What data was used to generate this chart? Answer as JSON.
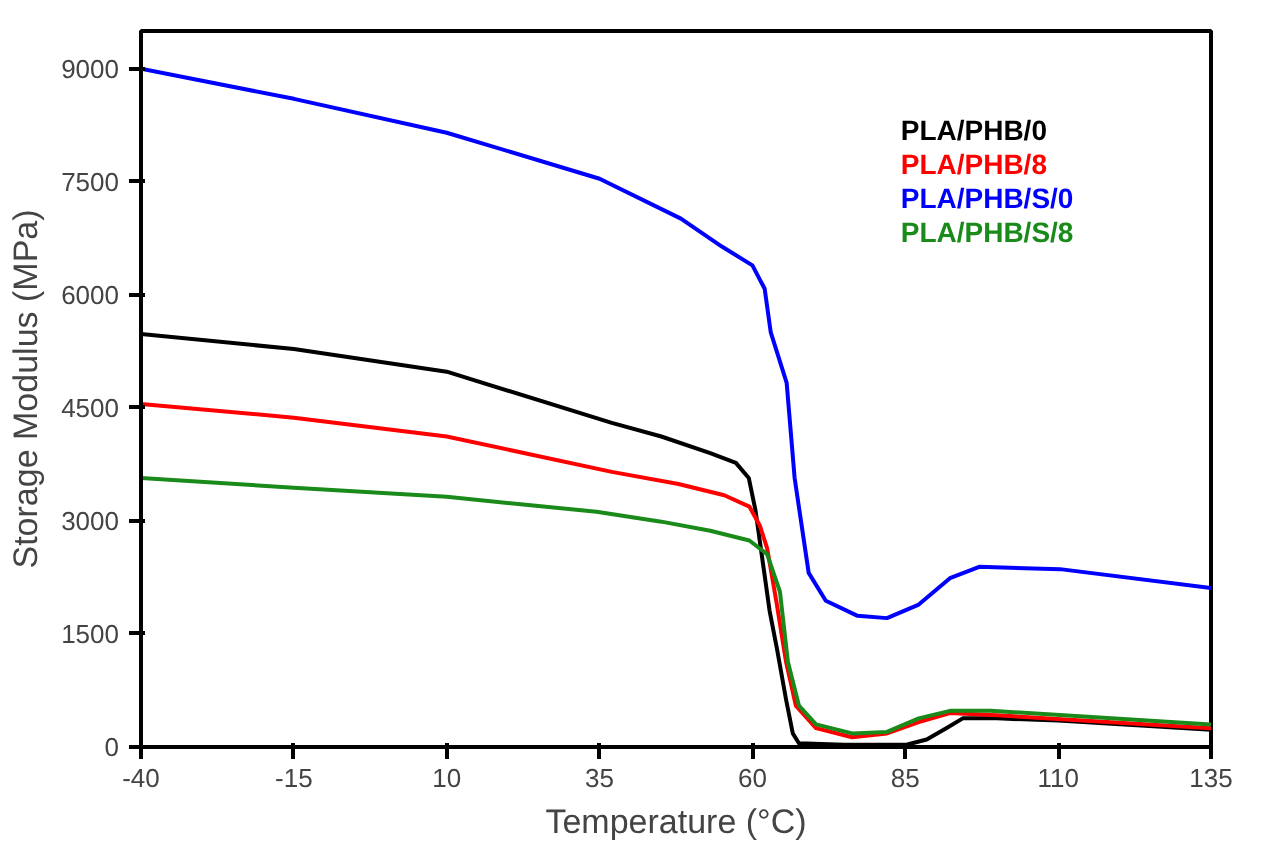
{
  "chart_data": {
    "type": "line",
    "xlabel": "Temperature (°C)",
    "ylabel": "Storage Modulus (MPa)",
    "xlim": [
      -40,
      135
    ],
    "xticks": [
      -40,
      -15,
      10,
      35,
      60,
      85,
      110,
      135
    ],
    "ylim": [
      0,
      9500
    ],
    "yticks": [
      0,
      1500,
      3000,
      4500,
      6000,
      7500,
      9000
    ],
    "grid": false,
    "legend": "top right",
    "line_style": "solid",
    "marker": "none",
    "series": [
      {
        "name": "PLA/PHB/0",
        "color": "#000000",
        "x": [
          -40,
          -15,
          10,
          37,
          45.1,
          53.1,
          57.3,
          59.4,
          60.5,
          61.8,
          62.8,
          64,
          65.5,
          66.6,
          67.6,
          75,
          85.2,
          88.5,
          91.7,
          94.4,
          100,
          110,
          135
        ],
        "values": [
          5480,
          5280,
          4980,
          4300,
          4120,
          3900,
          3770,
          3570,
          3140,
          2390,
          1810,
          1310,
          630,
          180,
          50,
          30,
          30,
          100,
          250,
          380,
          380,
          350,
          230
        ]
      },
      {
        "name": "PLA/PHB/8",
        "color": "#ff0000",
        "x": [
          -40,
          -15,
          10,
          37,
          47.9,
          55.4,
          59.5,
          61.2,
          62.4,
          64,
          65.5,
          67.1,
          70.4,
          76.3,
          82,
          87.2,
          92.3,
          100,
          135
        ],
        "values": [
          4550,
          4370,
          4120,
          3650,
          3490,
          3340,
          3190,
          2940,
          2640,
          1890,
          1130,
          550,
          250,
          130,
          180,
          330,
          450,
          420,
          250
        ]
      },
      {
        "name": "PLA/PHB/S/0",
        "color": "#0000ff",
        "x": [
          -40,
          -15,
          10,
          35,
          48.3,
          55,
          60,
          62,
          63,
          65.6,
          66.9,
          69.2,
          72,
          77.2,
          82,
          87.2,
          92.3,
          97.1,
          110.3,
          135
        ],
        "values": [
          9000,
          8600,
          8150,
          7540,
          7010,
          6640,
          6390,
          6080,
          5500,
          4830,
          3570,
          2310,
          1940,
          1740,
          1710,
          1890,
          2240,
          2390,
          2360,
          2110
        ]
      },
      {
        "name": "PLA/PHB/S/8",
        "color": "#1a8a1a",
        "x": [
          -40,
          -15,
          10,
          34.5,
          45.1,
          53.1,
          59.5,
          62.4,
          64.5,
          65.8,
          67.6,
          70.4,
          76.3,
          82,
          87.2,
          92.3,
          99,
          135
        ],
        "values": [
          3570,
          3440,
          3320,
          3120,
          2990,
          2870,
          2740,
          2560,
          2060,
          1130,
          550,
          300,
          180,
          200,
          380,
          480,
          480,
          300
        ]
      }
    ]
  }
}
